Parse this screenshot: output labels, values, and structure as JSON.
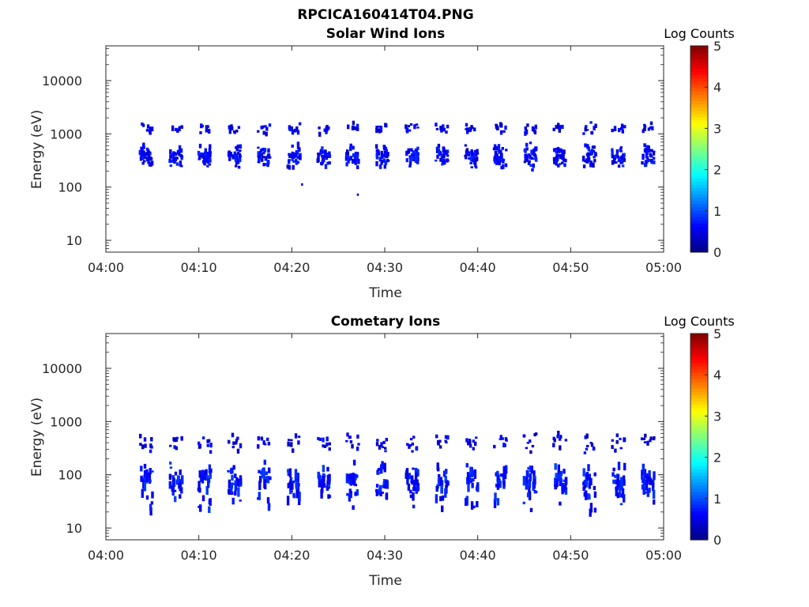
{
  "figure": {
    "title": "RPCICA160414T04.PNG"
  },
  "chart_data": [
    {
      "type": "heatmap",
      "title": "Solar Wind Ions",
      "xlabel": "Time",
      "ylabel": "Energy (eV)",
      "xticks": [
        "04:00",
        "04:10",
        "04:20",
        "04:30",
        "04:40",
        "04:50",
        "05:00"
      ],
      "xlim": [
        "04:00",
        "05:00"
      ],
      "yscale": "log",
      "yticks": [
        "10",
        "100",
        "1000",
        "10000"
      ],
      "ylim": [
        6,
        45000
      ],
      "colorbar": {
        "label": "Log Counts",
        "ticks": [
          "0",
          "1",
          "2",
          "3",
          "4",
          "5"
        ],
        "range": [
          0,
          5
        ],
        "colormap": "jet"
      },
      "grid": false,
      "cycle_minutes": [
        4.2,
        7.4,
        10.5,
        13.7,
        16.9,
        20.1,
        23.3,
        26.4,
        29.6,
        32.8,
        36.0,
        39.2,
        42.3,
        45.5,
        48.7,
        51.9,
        55.0,
        58.2
      ],
      "bands": [
        {
          "name": "upper",
          "energy_center_eV": 1250,
          "energy_spread_decades": 0.06,
          "log_counts": 0.5
        },
        {
          "name": "main",
          "energy_center_eV": 380,
          "energy_spread_decades": 0.12,
          "log_counts": 0.6
        }
      ],
      "isolated_points": [
        {
          "time": "04:21",
          "energy_eV": 112
        },
        {
          "time": "04:27",
          "energy_eV": 72
        }
      ]
    },
    {
      "type": "heatmap",
      "title": "Cometary Ions",
      "xlabel": "Time",
      "ylabel": "Energy (eV)",
      "xticks": [
        "04:00",
        "04:10",
        "04:20",
        "04:30",
        "04:40",
        "04:50",
        "05:00"
      ],
      "xlim": [
        "04:00",
        "05:00"
      ],
      "yscale": "log",
      "yticks": [
        "10",
        "100",
        "1000",
        "10000"
      ],
      "ylim": [
        6,
        45000
      ],
      "colorbar": {
        "label": "Log Counts",
        "ticks": [
          "0",
          "1",
          "2",
          "3",
          "4",
          "5"
        ],
        "range": [
          0,
          5
        ],
        "colormap": "jet"
      },
      "grid": false,
      "cycle_minutes": [
        4.2,
        7.4,
        10.5,
        13.7,
        16.9,
        20.1,
        23.3,
        26.4,
        29.6,
        32.8,
        36.0,
        39.2,
        42.3,
        45.5,
        48.7,
        51.9,
        55.0,
        58.2
      ],
      "bands": [
        {
          "name": "upper",
          "energy_center_eV": 400,
          "energy_spread_decades": 0.1,
          "log_counts": 0.5
        },
        {
          "name": "lower",
          "energy_center_eV": 80,
          "energy_spread_decades": 0.18,
          "log_counts": 0.7
        }
      ]
    }
  ]
}
